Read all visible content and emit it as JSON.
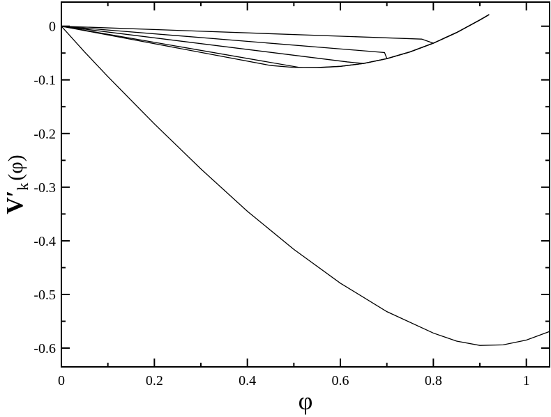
{
  "chart_data": {
    "type": "line",
    "title": "",
    "xlabel": "φ",
    "ylabel_main": "V",
    "ylabel_prime": "′",
    "ylabel_sub": "k",
    "ylabel_arg": "(φ)",
    "xlim": [
      0,
      1.05
    ],
    "ylim": [
      -0.635,
      0.045
    ],
    "grid": false,
    "x_ticks": [
      0,
      0.2,
      0.4,
      0.6,
      0.8,
      1
    ],
    "x_tick_labels": [
      "0",
      "0.2",
      "0.4",
      "0.6",
      "0.8",
      "1"
    ],
    "y_ticks": [
      0,
      -0.1,
      -0.2,
      -0.3,
      -0.4,
      -0.5,
      -0.6
    ],
    "y_tick_labels": [
      "0",
      "-0.1",
      "-0.2",
      "-0.3",
      "-0.4",
      "-0.5",
      "-0.6"
    ],
    "series": [
      {
        "values": [
          [
            0,
            0
          ],
          [
            0.05,
            -0.048
          ],
          [
            0.1,
            -0.094
          ],
          [
            0.2,
            -0.182
          ],
          [
            0.3,
            -0.266
          ],
          [
            0.4,
            -0.345
          ],
          [
            0.5,
            -0.416
          ],
          [
            0.6,
            -0.479
          ],
          [
            0.7,
            -0.532
          ],
          [
            0.8,
            -0.572
          ],
          [
            0.85,
            -0.587
          ],
          [
            0.9,
            -0.595
          ],
          [
            0.95,
            -0.594
          ],
          [
            1.0,
            -0.585
          ],
          [
            1.05,
            -0.569
          ]
        ]
      },
      {
        "values": [
          [
            0,
            0
          ],
          [
            0.51,
            -0.0765
          ],
          [
            0.52,
            -0.0768
          ],
          [
            0.56,
            -0.0769
          ],
          [
            0.6,
            -0.0748
          ],
          [
            0.65,
            -0.0694
          ],
          [
            0.7,
            -0.0604
          ],
          [
            0.75,
            -0.0478
          ],
          [
            0.8,
            -0.0316
          ],
          [
            0.85,
            -0.0118
          ],
          [
            0.9,
            0.0116
          ],
          [
            0.92,
            0.0218
          ]
        ]
      },
      {
        "values": [
          [
            0,
            0
          ],
          [
            0.615,
            -0.0665
          ],
          [
            0.65,
            -0.0694
          ],
          [
            0.7,
            -0.0604
          ],
          [
            0.75,
            -0.0478
          ],
          [
            0.8,
            -0.0316
          ],
          [
            0.85,
            -0.0118
          ],
          [
            0.9,
            0.0116
          ],
          [
            0.92,
            0.0218
          ]
        ]
      },
      {
        "values": [
          [
            0,
            0
          ],
          [
            0.695,
            -0.049
          ],
          [
            0.7,
            -0.0604
          ],
          [
            0.75,
            -0.0478
          ],
          [
            0.8,
            -0.0316
          ],
          [
            0.85,
            -0.0118
          ],
          [
            0.9,
            0.0116
          ],
          [
            0.92,
            0.0218
          ]
        ]
      },
      {
        "values": [
          [
            0,
            0
          ],
          [
            0.775,
            -0.024
          ],
          [
            0.8,
            -0.0316
          ],
          [
            0.85,
            -0.0118
          ],
          [
            0.9,
            0.0116
          ],
          [
            0.92,
            0.0218
          ]
        ]
      },
      {
        "values": [
          [
            0,
            0
          ],
          [
            0.45,
            -0.0732
          ],
          [
            0.5,
            -0.0768
          ],
          [
            0.55,
            -0.0768
          ],
          [
            0.6,
            -0.0748
          ],
          [
            0.65,
            -0.0694
          ],
          [
            0.7,
            -0.0604
          ],
          [
            0.75,
            -0.0478
          ],
          [
            0.8,
            -0.0316
          ],
          [
            0.85,
            -0.0118
          ],
          [
            0.9,
            0.0116
          ],
          [
            0.92,
            0.0218
          ]
        ]
      }
    ]
  }
}
